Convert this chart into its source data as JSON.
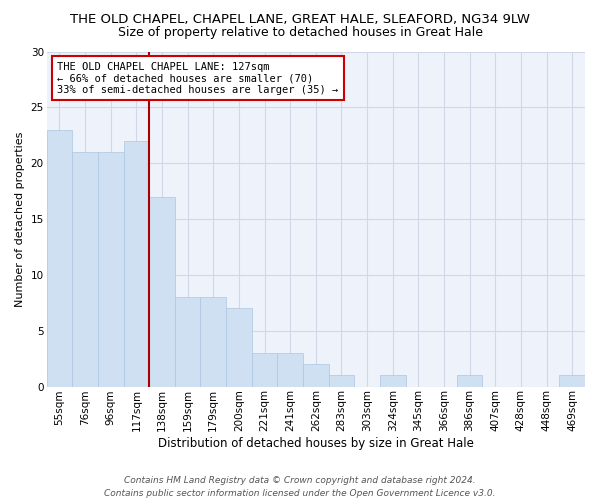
{
  "title": "THE OLD CHAPEL, CHAPEL LANE, GREAT HALE, SLEAFORD, NG34 9LW",
  "subtitle": "Size of property relative to detached houses in Great Hale",
  "xlabel": "Distribution of detached houses by size in Great Hale",
  "ylabel": "Number of detached properties",
  "categories": [
    "55sqm",
    "76sqm",
    "96sqm",
    "117sqm",
    "138sqm",
    "159sqm",
    "179sqm",
    "200sqm",
    "221sqm",
    "241sqm",
    "262sqm",
    "283sqm",
    "303sqm",
    "324sqm",
    "345sqm",
    "366sqm",
    "386sqm",
    "407sqm",
    "428sqm",
    "448sqm",
    "469sqm"
  ],
  "values": [
    23,
    21,
    21,
    22,
    17,
    8,
    8,
    7,
    3,
    3,
    2,
    1,
    0,
    1,
    0,
    0,
    1,
    0,
    0,
    0,
    1
  ],
  "bar_color": "#cfe0f3",
  "bar_edge_color": "#adc6e0",
  "vline_x": 3.5,
  "vline_color": "#aa0000",
  "annotation_text": "THE OLD CHAPEL CHAPEL LANE: 127sqm\n← 66% of detached houses are smaller (70)\n33% of semi-detached houses are larger (35) →",
  "annotation_box_color": "#ffffff",
  "annotation_box_edgecolor": "#cc0000",
  "ylim": [
    0,
    30
  ],
  "yticks": [
    0,
    5,
    10,
    15,
    20,
    25,
    30
  ],
  "grid_color": "#d0d8e8",
  "background_color": "#eef3fb",
  "footer": "Contains HM Land Registry data © Crown copyright and database right 2024.\nContains public sector information licensed under the Open Government Licence v3.0.",
  "title_fontsize": 9.5,
  "subtitle_fontsize": 9,
  "xlabel_fontsize": 8.5,
  "ylabel_fontsize": 8,
  "tick_fontsize": 7.5,
  "annotation_fontsize": 7.5,
  "footer_fontsize": 6.5
}
